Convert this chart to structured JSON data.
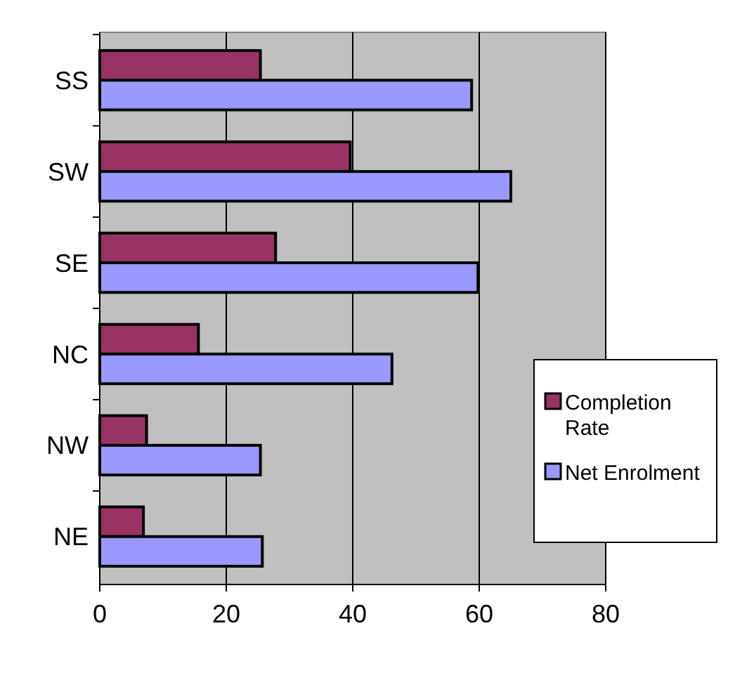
{
  "chart_data": {
    "type": "bar",
    "orientation": "horizontal",
    "categories": [
      "SS",
      "SW",
      "SE",
      "NC",
      "NW",
      "NE"
    ],
    "series": [
      {
        "name": "Completion Rate",
        "color": "#993366",
        "values": [
          25.4,
          39.6,
          27.8,
          15.6,
          7.4,
          6.9
        ]
      },
      {
        "name": "Net Enrolment",
        "color": "#9999ff",
        "values": [
          58.8,
          65.0,
          59.8,
          46.2,
          25.4,
          25.7
        ]
      }
    ],
    "xlim": [
      0,
      80
    ],
    "xticks": [
      0,
      20,
      40,
      60,
      80
    ],
    "grid": "x",
    "legend": "right"
  }
}
